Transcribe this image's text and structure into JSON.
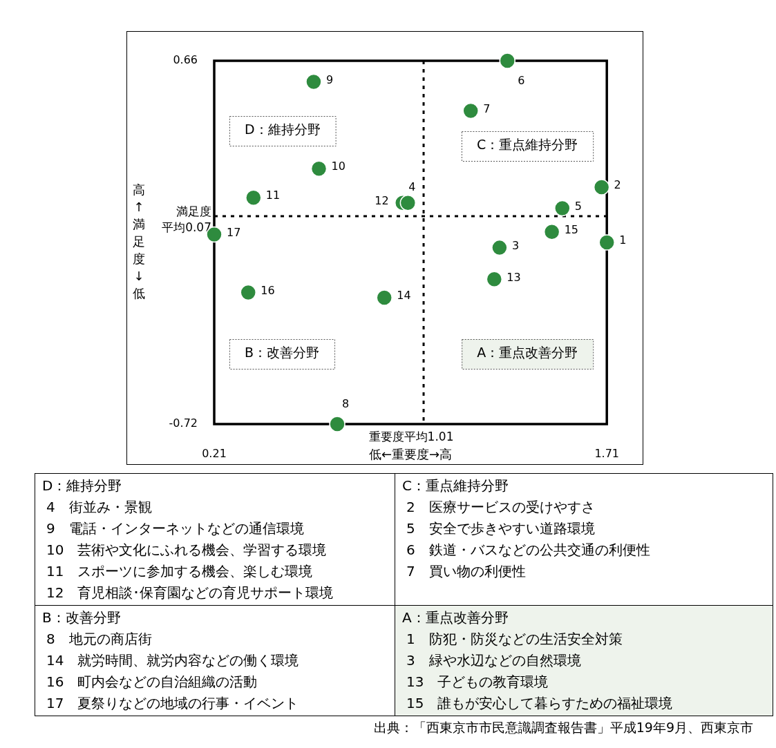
{
  "chart_data": {
    "type": "scatter",
    "xlabel": "低←重要度→高",
    "ylabel": "高↑満足度↓低",
    "series": [
      {
        "name": "1",
        "color": "#2e8b3e",
        "x": [
          1.71
        ],
        "values": [
          -0.03
        ]
      },
      {
        "name": "2",
        "color": "#2e8b3e",
        "x": [
          1.69
        ],
        "values": [
          0.18
        ]
      },
      {
        "name": "3",
        "color": "#2e8b3e",
        "x": [
          1.3
        ],
        "values": [
          -0.05
        ]
      },
      {
        "name": "4",
        "color": "#2e8b3e",
        "x": [
          0.95
        ],
        "values": [
          0.12
        ]
      },
      {
        "name": "5",
        "color": "#2e8b3e",
        "x": [
          1.54
        ],
        "values": [
          0.1
        ]
      },
      {
        "name": "6",
        "color": "#2e8b3e",
        "x": [
          1.33
        ],
        "values": [
          0.66
        ]
      },
      {
        "name": "7",
        "color": "#2e8b3e",
        "x": [
          1.19
        ],
        "values": [
          0.47
        ]
      },
      {
        "name": "8",
        "color": "#2e8b3e",
        "x": [
          0.68
        ],
        "values": [
          -0.72
        ]
      },
      {
        "name": "9",
        "color": "#2e8b3e",
        "x": [
          0.59
        ],
        "values": [
          0.58
        ]
      },
      {
        "name": "10",
        "color": "#2e8b3e",
        "x": [
          0.61
        ],
        "values": [
          0.25
        ]
      },
      {
        "name": "11",
        "color": "#2e8b3e",
        "x": [
          0.36
        ],
        "values": [
          0.14
        ]
      },
      {
        "name": "12",
        "color": "#2e8b3e",
        "x": [
          0.93
        ],
        "values": [
          0.12
        ]
      },
      {
        "name": "13",
        "color": "#2e8b3e",
        "x": [
          1.28
        ],
        "values": [
          -0.17
        ]
      },
      {
        "name": "14",
        "color": "#2e8b3e",
        "x": [
          0.86
        ],
        "values": [
          -0.24
        ]
      },
      {
        "name": "15",
        "color": "#2e8b3e",
        "x": [
          1.5
        ],
        "values": [
          0.01
        ]
      },
      {
        "name": "16",
        "color": "#2e8b3e",
        "x": [
          0.34
        ],
        "values": [
          -0.22
        ]
      },
      {
        "name": "17",
        "color": "#2e8b3e",
        "x": [
          0.21
        ],
        "values": [
          0.0
        ]
      }
    ],
    "xlim": [
      0.21,
      1.71
    ],
    "xticks": [
      0.21,
      1.71
    ],
    "ylim": [
      -0.72,
      0.66
    ],
    "yticks": [
      -0.72,
      0.66
    ],
    "legend": false,
    "marker": "circle",
    "ref_lines": [
      {
        "axis": "x",
        "value": 1.01,
        "label": "重要度平均1.01",
        "line_style": "dashed"
      },
      {
        "axis": "y",
        "value": 0.07,
        "label": "満足度平均0.07",
        "line_style": "dashed"
      }
    ],
    "annotations": [
      "D：維持分野",
      "C：重点維持分野",
      "B：改善分野",
      "A：重点改善分野",
      "4　街並み・景観",
      "9　電話・インターネットなどの通信環境",
      "10　芸術や文化にふれる機会、学習する環境",
      "11　スポーツに参加する機会、楽しむ環境",
      "12　育児相談･保育園などの育児サポート環境",
      "2　医療サービスの受けやすさ",
      "5　安全で歩きやすい道路環境",
      "6　鉄道・バスなどの公共交通の利便性",
      "7　買い物の利便性",
      "8　地元の商店街",
      "14　就労時間、就労内容などの働く環境",
      "16　町内会などの自治組織の活動",
      "17　夏祭りなどの地域の行事・イベント",
      "1　防犯・防災などの生活安全対策",
      "3　緑や水辺などの自然環境",
      "13　子どもの教育環境",
      "15　誰もが安心して暮らすための福祉環境",
      "出典：「西東京市市民意識調査報告書」平成19年9月、西東京市"
    ]
  }
}
